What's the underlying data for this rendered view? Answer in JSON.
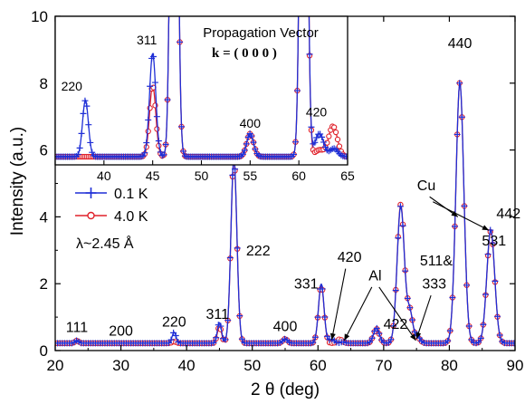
{
  "colors": {
    "series_0_1K": "#1f2fd6",
    "series_4_0K": "#e0202a",
    "axis": "#000000"
  },
  "chart_data": {
    "type": "line",
    "xlabel": "2 θ (deg)",
    "ylabel": "Intensity (a.u.)",
    "xlim": [
      20,
      90
    ],
    "ylim": [
      0,
      10
    ],
    "x_ticks": [
      20,
      30,
      40,
      50,
      60,
      70,
      80,
      90
    ],
    "y_ticks": [
      0,
      2,
      4,
      6,
      8,
      10
    ],
    "legend": {
      "placement": "left",
      "entries": [
        {
          "label": "0.1 K",
          "color": "#1f2fd6",
          "marker": "plus"
        },
        {
          "label": "4.0 K",
          "color": "#e0202a",
          "marker": "open-circle"
        }
      ],
      "extra_text": "λ~2.45 Å"
    },
    "background_level": 0.22,
    "series": [
      {
        "name": "0.1 K",
        "peaks": [
          {
            "x": 23.3,
            "height": 0.08,
            "width": 0.28
          },
          {
            "x": 38.1,
            "height": 0.33,
            "width": 0.3
          },
          {
            "x": 45.0,
            "height": 0.62,
            "width": 0.32
          },
          {
            "x": 47.2,
            "height": 5.55,
            "width": 0.45
          },
          {
            "x": 55.0,
            "height": 0.13,
            "width": 0.35
          },
          {
            "x": 60.5,
            "height": 1.78,
            "width": 0.42
          },
          {
            "x": 62.1,
            "height": 0.12,
            "width": 0.4
          },
          {
            "x": 63.8,
            "height": 0.04,
            "width": 0.35
          },
          {
            "x": 68.9,
            "height": 0.45,
            "width": 0.45
          },
          {
            "x": 72.6,
            "height": 4.1,
            "width": 0.55
          },
          {
            "x": 74.0,
            "height": 0.9,
            "width": 0.45
          },
          {
            "x": 75.2,
            "height": 0.18,
            "width": 0.4
          },
          {
            "x": 81.6,
            "height": 7.8,
            "width": 0.6
          },
          {
            "x": 86.3,
            "height": 3.4,
            "width": 0.6
          }
        ]
      },
      {
        "name": "4.0 K",
        "peaks": [
          {
            "x": 23.3,
            "height": 0.08,
            "width": 0.28
          },
          {
            "x": 38.1,
            "height": 0.05,
            "width": 0.3
          },
          {
            "x": 45.0,
            "height": 0.5,
            "width": 0.32
          },
          {
            "x": 47.2,
            "height": 5.5,
            "width": 0.45
          },
          {
            "x": 55.0,
            "height": 0.13,
            "width": 0.35
          },
          {
            "x": 60.5,
            "height": 1.75,
            "width": 0.42
          },
          {
            "x": 63.3,
            "height": 0.12,
            "width": 0.4
          },
          {
            "x": 68.9,
            "height": 0.43,
            "width": 0.45
          },
          {
            "x": 72.6,
            "height": 4.15,
            "width": 0.55
          },
          {
            "x": 74.0,
            "height": 0.9,
            "width": 0.45
          },
          {
            "x": 75.2,
            "height": 0.15,
            "width": 0.4
          },
          {
            "x": 81.6,
            "height": 7.8,
            "width": 0.6
          },
          {
            "x": 86.3,
            "height": 3.35,
            "width": 0.6
          }
        ]
      }
    ],
    "peak_labels": [
      {
        "text": "111",
        "x": 23.3,
        "y": 0.55
      },
      {
        "text": "200",
        "x": 30.0,
        "y": 0.45
      },
      {
        "text": "220",
        "x": 38.1,
        "y": 0.72
      },
      {
        "text": "311",
        "x": 44.7,
        "y": 0.95
      },
      {
        "text": "222",
        "x": 50.9,
        "y": 2.85
      },
      {
        "text": "400",
        "x": 55.0,
        "y": 0.58
      },
      {
        "text": "331",
        "x": 58.2,
        "y": 1.85
      },
      {
        "text": "420",
        "x": 64.8,
        "y": 2.65
      },
      {
        "text": "422",
        "x": 71.8,
        "y": 0.65
      },
      {
        "text": "511&",
        "x": 78.0,
        "y": 2.55
      },
      {
        "text": "333",
        "x": 77.7,
        "y": 1.85
      },
      {
        "text": "440",
        "x": 81.6,
        "y": 9.05
      },
      {
        "text": "442",
        "x": 89.0,
        "y": 3.95
      },
      {
        "text": "531",
        "x": 86.8,
        "y": 3.15
      },
      {
        "text": "Cu",
        "x": 76.5,
        "y": 4.8
      },
      {
        "text": "Al",
        "x": 68.7,
        "y": 2.1
      }
    ],
    "arrows": [
      {
        "from": [
          64.2,
          2.45
        ],
        "to": [
          62.1,
          0.32
        ]
      },
      {
        "from": [
          68.2,
          1.9
        ],
        "to": [
          64.0,
          0.3
        ]
      },
      {
        "from": [
          69.3,
          1.9
        ],
        "to": [
          74.9,
          0.3
        ]
      },
      {
        "from": [
          77.2,
          1.65
        ],
        "to": [
          75.0,
          0.35
        ]
      },
      {
        "from": [
          77.0,
          4.6
        ],
        "to": [
          81.3,
          4.0
        ]
      },
      {
        "from": [
          77.5,
          4.45
        ],
        "to": [
          86.0,
          3.6
        ]
      }
    ],
    "inset": {
      "title": "Propagation Vector",
      "subtitle": "k = ( 0 0 0 )",
      "xlim": [
        35,
        65
      ],
      "ylim": [
        6,
        10
      ],
      "x_ticks": [
        35,
        40,
        45,
        50,
        55,
        60,
        65
      ],
      "y_range_note": "same y scale as main axes",
      "peak_labels": [
        {
          "text": "220",
          "x": 36.7,
          "y": 8.0
        },
        {
          "text": "311",
          "x": 44.4,
          "y": 9.25
        },
        {
          "text": "400",
          "x": 55.0,
          "y": 7.0
        },
        {
          "text": "420",
          "x": 61.8,
          "y": 7.3
        }
      ],
      "series": [
        {
          "name": "0.1 K",
          "peaks": [
            {
              "x": 38.1,
              "height": 1.52,
              "width": 0.3
            },
            {
              "x": 45.0,
              "height": 2.78,
              "width": 0.32
            },
            {
              "x": 47.2,
              "height": 20.0,
              "width": 0.3
            },
            {
              "x": 55.0,
              "height": 0.62,
              "width": 0.35
            },
            {
              "x": 60.5,
              "height": 20.0,
              "width": 0.3
            },
            {
              "x": 62.1,
              "height": 0.62,
              "width": 0.45
            },
            {
              "x": 63.6,
              "height": 0.22,
              "width": 0.4
            }
          ]
        },
        {
          "name": "4.0 K",
          "peaks": [
            {
              "x": 45.0,
              "height": 1.92,
              "width": 0.32
            },
            {
              "x": 47.2,
              "height": 20.0,
              "width": 0.3
            },
            {
              "x": 55.0,
              "height": 0.62,
              "width": 0.35
            },
            {
              "x": 60.5,
              "height": 20.0,
              "width": 0.3
            },
            {
              "x": 62.1,
              "height": 0.18,
              "width": 0.45
            },
            {
              "x": 63.5,
              "height": 0.82,
              "width": 0.45
            }
          ]
        }
      ],
      "background_level": 6.22
    }
  }
}
